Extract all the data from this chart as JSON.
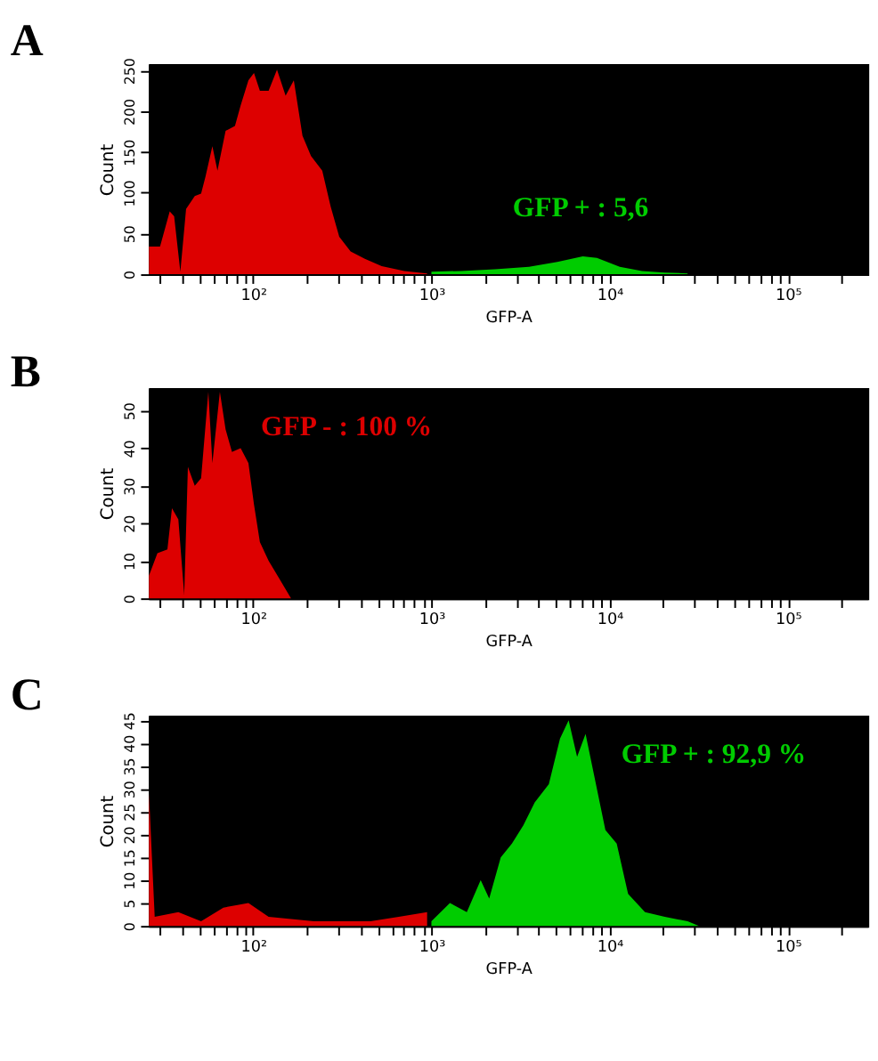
{
  "chart_data": [
    {
      "type": "area",
      "title": "A",
      "xlabel": "GFP-A",
      "ylabel": "Count",
      "log": "x",
      "grid": false,
      "xlim": [
        26,
        280000
      ],
      "ylim": [
        0,
        258
      ],
      "yticks": [
        0,
        50,
        100,
        150,
        200,
        250
      ],
      "xticks": [
        {
          "value": 30,
          "label": null
        },
        {
          "value": 40,
          "label": null
        },
        {
          "value": 50,
          "label": null
        },
        {
          "value": 60,
          "label": null
        },
        {
          "value": 70,
          "label": null
        },
        {
          "value": 80,
          "label": null
        },
        {
          "value": 90,
          "label": null
        },
        {
          "value": 100,
          "label": "10²"
        },
        {
          "value": 200,
          "label": null
        },
        {
          "value": 300,
          "label": null
        },
        {
          "value": 400,
          "label": null
        },
        {
          "value": 500,
          "label": null
        },
        {
          "value": 600,
          "label": null
        },
        {
          "value": 700,
          "label": null
        },
        {
          "value": 800,
          "label": null
        },
        {
          "value": 900,
          "label": null
        },
        {
          "value": 1000,
          "label": "10³"
        },
        {
          "value": 2000,
          "label": null
        },
        {
          "value": 3000,
          "label": null
        },
        {
          "value": 4000,
          "label": null
        },
        {
          "value": 5000,
          "label": null
        },
        {
          "value": 6000,
          "label": null
        },
        {
          "value": 7000,
          "label": null
        },
        {
          "value": 8000,
          "label": null
        },
        {
          "value": 9000,
          "label": null
        },
        {
          "value": 10000,
          "label": "10⁴"
        },
        {
          "value": 20000,
          "label": null
        },
        {
          "value": 30000,
          "label": null
        },
        {
          "value": 40000,
          "label": null
        },
        {
          "value": 50000,
          "label": null
        },
        {
          "value": 60000,
          "label": null
        },
        {
          "value": 70000,
          "label": null
        },
        {
          "value": 80000,
          "label": null
        },
        {
          "value": 90000,
          "label": null
        },
        {
          "value": 100000,
          "label": "10⁵"
        },
        {
          "value": 200000,
          "label": null
        }
      ],
      "series": [
        {
          "color": "#dd0000",
          "x": [
            26,
            30,
            34,
            36,
            39,
            42,
            47,
            51,
            54,
            59,
            63,
            70,
            79,
            85,
            94,
            101,
            109,
            122,
            136,
            152,
            169,
            189,
            211,
            244,
            272,
            304,
            352,
            423,
            526,
            705,
            946
          ],
          "values": [
            34,
            34,
            77,
            71,
            3,
            80,
            96,
            99,
            120,
            157,
            127,
            176,
            182,
            207,
            238,
            247,
            225,
            225,
            251,
            219,
            238,
            170,
            145,
            127,
            83,
            46,
            28,
            19,
            10,
            4,
            1
          ]
        },
        {
          "color": "#00cc00",
          "x": [
            1000,
            1466,
            2274,
            3530,
            5090,
            7070,
            8490,
            11400,
            15200,
            20400,
            27400
          ],
          "values": [
            3,
            4,
            6,
            9,
            15,
            22,
            20,
            9,
            4,
            2,
            1
          ]
        }
      ],
      "annotations": [
        "GFP + : 5,6"
      ]
    },
    {
      "type": "area",
      "title": "B",
      "xlabel": "GFP-A",
      "ylabel": "Count",
      "log": "x",
      "grid": false,
      "xlim": [
        26,
        280000
      ],
      "ylim": [
        0,
        56
      ],
      "yticks": [
        0,
        10,
        20,
        30,
        40,
        50
      ],
      "xticks": [
        {
          "value": 30,
          "label": null
        },
        {
          "value": 40,
          "label": null
        },
        {
          "value": 50,
          "label": null
        },
        {
          "value": 60,
          "label": null
        },
        {
          "value": 70,
          "label": null
        },
        {
          "value": 80,
          "label": null
        },
        {
          "value": 90,
          "label": null
        },
        {
          "value": 100,
          "label": "10²"
        },
        {
          "value": 200,
          "label": null
        },
        {
          "value": 300,
          "label": null
        },
        {
          "value": 400,
          "label": null
        },
        {
          "value": 500,
          "label": null
        },
        {
          "value": 600,
          "label": null
        },
        {
          "value": 700,
          "label": null
        },
        {
          "value": 800,
          "label": null
        },
        {
          "value": 900,
          "label": null
        },
        {
          "value": 1000,
          "label": "10³"
        },
        {
          "value": 2000,
          "label": null
        },
        {
          "value": 3000,
          "label": null
        },
        {
          "value": 4000,
          "label": null
        },
        {
          "value": 5000,
          "label": null
        },
        {
          "value": 6000,
          "label": null
        },
        {
          "value": 7000,
          "label": null
        },
        {
          "value": 8000,
          "label": null
        },
        {
          "value": 9000,
          "label": null
        },
        {
          "value": 10000,
          "label": "10⁴"
        },
        {
          "value": 20000,
          "label": null
        },
        {
          "value": 30000,
          "label": null
        },
        {
          "value": 40000,
          "label": null
        },
        {
          "value": 50000,
          "label": null
        },
        {
          "value": 60000,
          "label": null
        },
        {
          "value": 70000,
          "label": null
        },
        {
          "value": 80000,
          "label": null
        },
        {
          "value": 90000,
          "label": null
        },
        {
          "value": 100000,
          "label": "10⁵"
        },
        {
          "value": 200000,
          "label": null
        }
      ],
      "series": [
        {
          "color": "#dd0000",
          "x": [
            26,
            29,
            33,
            35,
            38,
            41,
            43,
            47,
            51,
            56,
            59,
            65,
            70,
            76,
            85,
            94,
            101,
            109,
            122,
            141,
            163,
            203
          ],
          "values": [
            6,
            12,
            13,
            24,
            21,
            1,
            35,
            30,
            32,
            55,
            36,
            55,
            45,
            39,
            40,
            36,
            25,
            15,
            10,
            5,
            0,
            0
          ]
        }
      ],
      "annotations": [
        "GFP - : 100 %"
      ]
    },
    {
      "type": "area",
      "title": "C",
      "xlabel": "GFP-A",
      "ylabel": "Count",
      "log": "x",
      "grid": false,
      "xlim": [
        26,
        280000
      ],
      "ylim": [
        0,
        46
      ],
      "yticks": [
        0,
        5,
        10,
        15,
        20,
        25,
        30,
        35,
        40,
        45
      ],
      "xticks": [
        {
          "value": 30,
          "label": null
        },
        {
          "value": 40,
          "label": null
        },
        {
          "value": 50,
          "label": null
        },
        {
          "value": 60,
          "label": null
        },
        {
          "value": 70,
          "label": null
        },
        {
          "value": 80,
          "label": null
        },
        {
          "value": 90,
          "label": null
        },
        {
          "value": 100,
          "label": "10²"
        },
        {
          "value": 200,
          "label": null
        },
        {
          "value": 300,
          "label": null
        },
        {
          "value": 400,
          "label": null
        },
        {
          "value": 500,
          "label": null
        },
        {
          "value": 600,
          "label": null
        },
        {
          "value": 700,
          "label": null
        },
        {
          "value": 800,
          "label": null
        },
        {
          "value": 900,
          "label": null
        },
        {
          "value": 1000,
          "label": "10³"
        },
        {
          "value": 2000,
          "label": null
        },
        {
          "value": 3000,
          "label": null
        },
        {
          "value": 4000,
          "label": null
        },
        {
          "value": 5000,
          "label": null
        },
        {
          "value": 6000,
          "label": null
        },
        {
          "value": 7000,
          "label": null
        },
        {
          "value": 8000,
          "label": null
        },
        {
          "value": 9000,
          "label": null
        },
        {
          "value": 10000,
          "label": "10⁴"
        },
        {
          "value": 20000,
          "label": null
        },
        {
          "value": 30000,
          "label": null
        },
        {
          "value": 40000,
          "label": null
        },
        {
          "value": 50000,
          "label": null
        },
        {
          "value": 60000,
          "label": null
        },
        {
          "value": 70000,
          "label": null
        },
        {
          "value": 80000,
          "label": null
        },
        {
          "value": 90000,
          "label": null
        },
        {
          "value": 100000,
          "label": "10⁵"
        },
        {
          "value": 200000,
          "label": null
        }
      ],
      "series": [
        {
          "color": "#dd0000",
          "x": [
            26,
            28,
            38,
            51,
            68,
            94,
            122,
            219,
            455,
            656,
            946
          ],
          "values": [
            29,
            2,
            3,
            1,
            4,
            5,
            2,
            1,
            1,
            2,
            3
          ]
        },
        {
          "color": "#00cc00",
          "x": [
            1000,
            1270,
            1580,
            1890,
            2110,
            2450,
            2830,
            3280,
            3800,
            4560,
            5270,
            5890,
            6570,
            7330,
            8180,
            9470,
            10960,
            12700,
            15800,
            20400,
            27400,
            31700
          ],
          "values": [
            1,
            5,
            3,
            10,
            6,
            15,
            18,
            22,
            27,
            31,
            41,
            45,
            37,
            42,
            33,
            21,
            18,
            7,
            3,
            2,
            1,
            0
          ]
        }
      ],
      "annotations": [
        "GFP + : 92,9 %"
      ]
    }
  ]
}
